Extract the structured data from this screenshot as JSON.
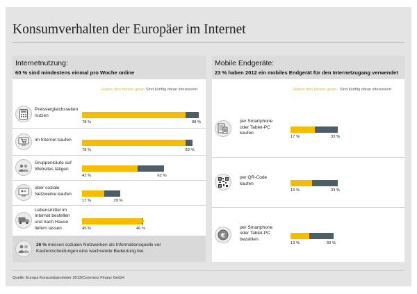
{
  "title": "Konsumverhalten der Europäer im Internet",
  "legend": {
    "have_done": "Haben dies bereits getan",
    "interested": "Sind künftig daran interessiert"
  },
  "colors": {
    "have_done": "#f5bc00",
    "interested": "#4d5e66"
  },
  "left_panel": {
    "title": "Internetnutzung:",
    "subtitle": "60 % sind mindestens einmal pro Woche online",
    "note_bold": "26 %",
    "note_rest": " messen sozialen Netzwerken als Informationsquelle vor",
    "note_line2": "Kaufentscheidungen eine wachsende Bedeutung bei."
  },
  "right_panel": {
    "title": "Mobile Endgeräte:",
    "subtitle": "23 % haben 2012 ein mobiles Endgerät für den Internetzugang verwendet"
  },
  "source": "Quelle: Europa Konsumbarometer 2013/Commerz Finanz GmbH",
  "chart_data": [
    {
      "type": "bar",
      "title": "Internetnutzung:",
      "subtitle": "60 % sind mindestens einmal pro Woche online",
      "categories": [
        "Preisvergleichsseiten\nnutzen",
        "im Internet kaufen",
        "Gruppenkäufe auf\nWebsites tätigen",
        "über soziale\nNetzwerke kaufen",
        "Lebensmittel im\nInternet bestellen\nund nach Hause\nliefern lassen"
      ],
      "icons": [
        "calculator-icon",
        "shopping-cart-icon",
        "group-purchase-icon",
        "social-network-icon",
        "delivery-truck-icon"
      ],
      "series": [
        {
          "name": "Haben dies bereits getan",
          "values": [
            78,
            78,
            42,
            17,
            45
          ],
          "labels": [
            "78 %",
            "78 %",
            "42 %",
            "17 %",
            "45 %"
          ]
        },
        {
          "name": "Sind künftig daran interessiert",
          "values": [
            88,
            83,
            62,
            29,
            46
          ],
          "labels": [
            "88 %",
            "83 %",
            "62 %",
            "29 %",
            "46 %"
          ]
        }
      ],
      "unit": "%",
      "ylim": [
        0,
        100
      ]
    },
    {
      "type": "bar",
      "title": "Mobile Endgeräte:",
      "subtitle": "23 % haben 2012 ein mobiles Endgerät für den Internetzugang verwendet",
      "categories": [
        "per Smartphone\noder Tablet-PC\nkaufen",
        "per QR-Code\nkaufen",
        "per Smartphone\noder Tablet-PC\nbezahlen"
      ],
      "icons": [
        "smartphone-tablet-icon",
        "qr-code-icon",
        "euro-coin-icon"
      ],
      "series": [
        {
          "name": "Haben dies bereits getan",
          "values": [
            17,
            15,
            13
          ],
          "labels": [
            "17 %",
            "15 %",
            "13 %"
          ]
        },
        {
          "name": "Sind künftig daran interessiert",
          "values": [
            33,
            33,
            30
          ],
          "labels": [
            "33 %",
            "33 %",
            "30 %"
          ]
        }
      ],
      "unit": "%",
      "ylim": [
        0,
        100
      ]
    }
  ]
}
